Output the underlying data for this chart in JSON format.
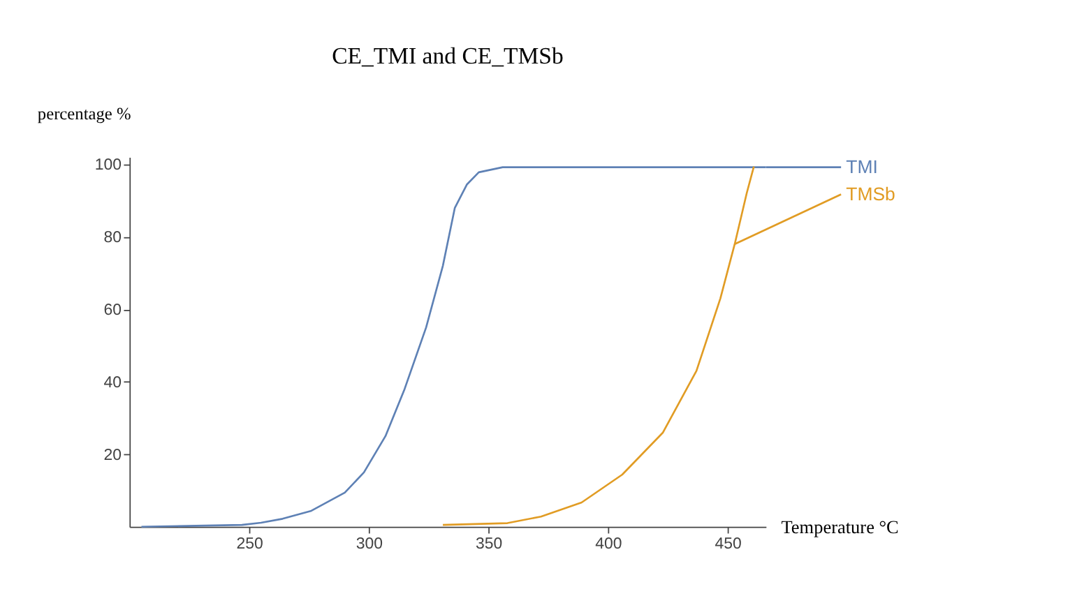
{
  "chart_data": {
    "type": "line",
    "title": "CE_TMI and CE_TMSb",
    "xlabel": "Temperature °C",
    "ylabel": "percentage %",
    "xlim": [
      200,
      466
    ],
    "ylim": [
      0,
      102
    ],
    "xticks": [
      250,
      300,
      350,
      400,
      450
    ],
    "yticks": [
      20,
      40,
      60,
      80,
      100
    ],
    "grid": false,
    "series": [
      {
        "name": "TMI",
        "color": "#5e81b5",
        "x": [
          205,
          247,
          255,
          264,
          276,
          290,
          298,
          307,
          315,
          324,
          331,
          336,
          341,
          346,
          356,
          400,
          466
        ],
        "values": [
          0,
          0.5,
          1.1,
          2.2,
          4.4,
          9.4,
          15,
          25,
          38,
          55,
          72,
          88,
          94.4,
          97.8,
          99.2,
          99.2,
          99.2
        ]
      },
      {
        "name": "TMSb",
        "color": "#e19c24",
        "x": [
          331,
          358,
          372,
          389,
          406,
          423,
          437,
          447,
          453,
          458,
          461
        ],
        "values": [
          0.5,
          1,
          2.8,
          6.7,
          14.4,
          26,
          43,
          63,
          78,
          92,
          99.4
        ]
      }
    ]
  }
}
